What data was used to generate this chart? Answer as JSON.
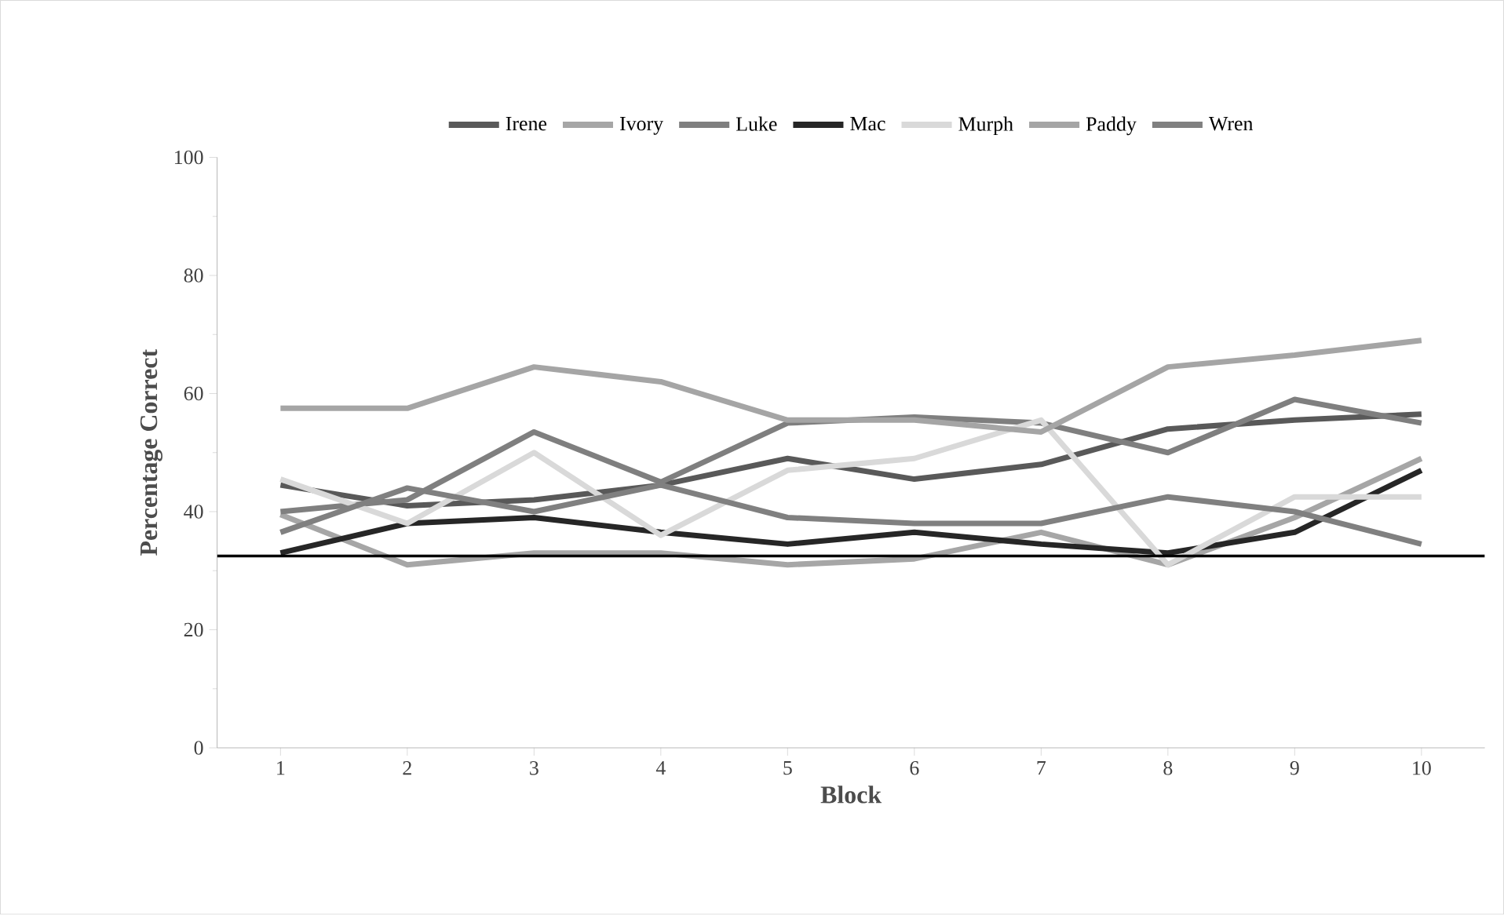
{
  "chart_data": {
    "type": "line",
    "xlabel": "Block",
    "ylabel": "Percentage Correct",
    "x": [
      1,
      2,
      3,
      4,
      5,
      6,
      7,
      8,
      9,
      10
    ],
    "xlim": [
      0.5,
      10.5
    ],
    "xticks": [
      1,
      2,
      3,
      4,
      5,
      6,
      7,
      8,
      9,
      10
    ],
    "ylim": [
      0,
      100
    ],
    "yticks": [
      0,
      20,
      40,
      60,
      80,
      100
    ],
    "legend": "top",
    "grid": false,
    "marker": "none",
    "line_style": "solid",
    "ref_lines": [
      {
        "axis": "y",
        "value": 32.5,
        "color": "#000000",
        "line_style": "solid"
      }
    ],
    "series": [
      {
        "name": "Irene",
        "color": "#595959",
        "values": [
          44.5,
          41,
          42,
          44.5,
          49,
          45.5,
          48,
          54,
          55.5,
          56.5
        ]
      },
      {
        "name": "Ivory",
        "color": "#a6a6a6",
        "values": [
          39.5,
          31,
          33,
          33,
          31,
          32,
          36.5,
          31,
          39,
          49
        ]
      },
      {
        "name": "Luke",
        "color": "#7f7f7f",
        "values": [
          40,
          42,
          53.5,
          45,
          55,
          56,
          55,
          50,
          59,
          55
        ]
      },
      {
        "name": "Mac",
        "color": "#262626",
        "values": [
          33,
          38,
          39,
          36.5,
          34.5,
          36.5,
          34.5,
          33,
          36.5,
          47
        ]
      },
      {
        "name": "Murph",
        "color": "#d9d9d9",
        "values": [
          45.5,
          38,
          50,
          36,
          47,
          49,
          55.5,
          31,
          42.5,
          42.5
        ]
      },
      {
        "name": "Paddy",
        "color": "#a5a5a5",
        "values": [
          57.5,
          57.5,
          64.5,
          62,
          55.5,
          55.5,
          53.5,
          64.5,
          66.5,
          69
        ]
      },
      {
        "name": "Wren",
        "color": "#808080",
        "values": [
          36.5,
          44,
          40,
          44.5,
          39,
          38,
          38,
          42.5,
          40,
          34.5
        ]
      }
    ]
  }
}
